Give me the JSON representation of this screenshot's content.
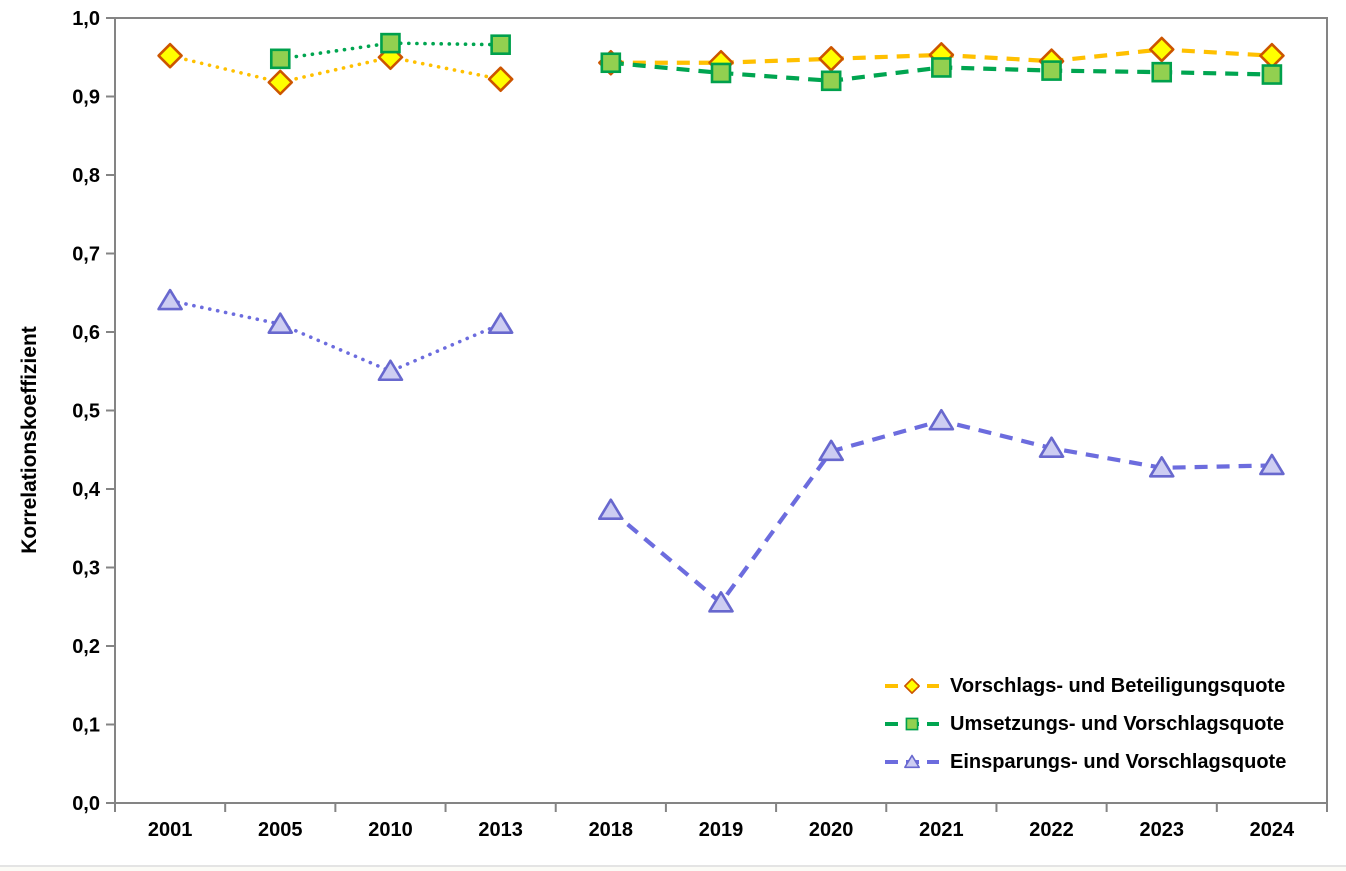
{
  "chart_data": {
    "type": "line",
    "title": "",
    "xlabel": "",
    "ylabel": "Korrelationskoeffizient",
    "ylim": [
      0.0,
      1.0
    ],
    "y_tick_step": 0.1,
    "y_tick_labels": [
      "0,0",
      "0,1",
      "0,2",
      "0,3",
      "0,4",
      "0,5",
      "0,6",
      "0,7",
      "0,8",
      "0,9",
      "1,0"
    ],
    "categories": [
      "2001",
      "2005",
      "2010",
      "2013",
      "2018",
      "2019",
      "2020",
      "2021",
      "2022",
      "2023",
      "2024"
    ],
    "grid": "off",
    "legend_position": "inside-bottom-right",
    "axis_color": "#848484",
    "text_color": "#000000",
    "split_index": 4,
    "segment_styles": {
      "first": "dotted",
      "second": "dashed"
    },
    "series": [
      {
        "name": "Vorschlags- und Beteiligungsquote",
        "marker": "diamond",
        "line_color": "#FFC000",
        "marker_fill": "#FFFF00",
        "marker_stroke": "#CC5500",
        "values": [
          0.952,
          0.918,
          0.95,
          0.922,
          0.943,
          0.943,
          0.948,
          0.953,
          0.945,
          0.96,
          0.952
        ]
      },
      {
        "name": "Umsetzungs- und Vorschlagsquote",
        "marker": "square",
        "line_color": "#00A550",
        "marker_fill": "#92D050",
        "marker_stroke": "#00A04C",
        "values": [
          null,
          0.948,
          0.968,
          0.966,
          0.943,
          0.93,
          0.92,
          0.937,
          0.933,
          0.931,
          0.928
        ]
      },
      {
        "name": "Einsparungs- und Vorschlagsquote",
        "marker": "triangle",
        "line_color": "#6C6CDE",
        "marker_fill": "#CDCDF2",
        "marker_stroke": "#6868CE",
        "values": [
          0.64,
          0.61,
          0.55,
          0.61,
          0.373,
          0.255,
          0.448,
          0.487,
          0.452,
          0.427,
          0.43
        ]
      }
    ]
  }
}
